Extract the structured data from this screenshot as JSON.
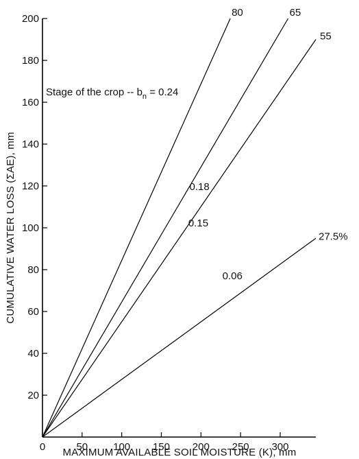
{
  "chart_data": {
    "type": "line",
    "xlabel": "MAXIMUM AVAILABLE SOIL MOISTURE (K), mm",
    "ylabel": "CUMULATIVE WATER LOSS (ΣAE), mm",
    "xlim": [
      0,
      345
    ],
    "ylim": [
      0,
      200
    ],
    "xticks": [
      "0",
      "50",
      "100",
      "150",
      "200",
      "250",
      "300"
    ],
    "yticks": [
      "20",
      "40",
      "60",
      "80",
      "100",
      "120",
      "140",
      "160",
      "180",
      "200"
    ],
    "grid": false,
    "series": [
      {
        "end_label": "80",
        "slope_label": "0.24",
        "x": [
          0,
          237
        ],
        "y": [
          0,
          200
        ]
      },
      {
        "end_label": "65",
        "slope_label": "0.18",
        "x": [
          0,
          310
        ],
        "y": [
          0,
          200
        ]
      },
      {
        "end_label": "55",
        "slope_label": "0.15",
        "x": [
          0,
          345
        ],
        "y": [
          0,
          190
        ]
      },
      {
        "end_label": "27.5%",
        "slope_label": "0.06",
        "x": [
          0,
          345
        ],
        "y": [
          0,
          95
        ]
      }
    ],
    "annotation": {
      "prefix": "Stage of the crop -- b",
      "subscript": "n",
      "suffix": " = 0.24"
    }
  }
}
